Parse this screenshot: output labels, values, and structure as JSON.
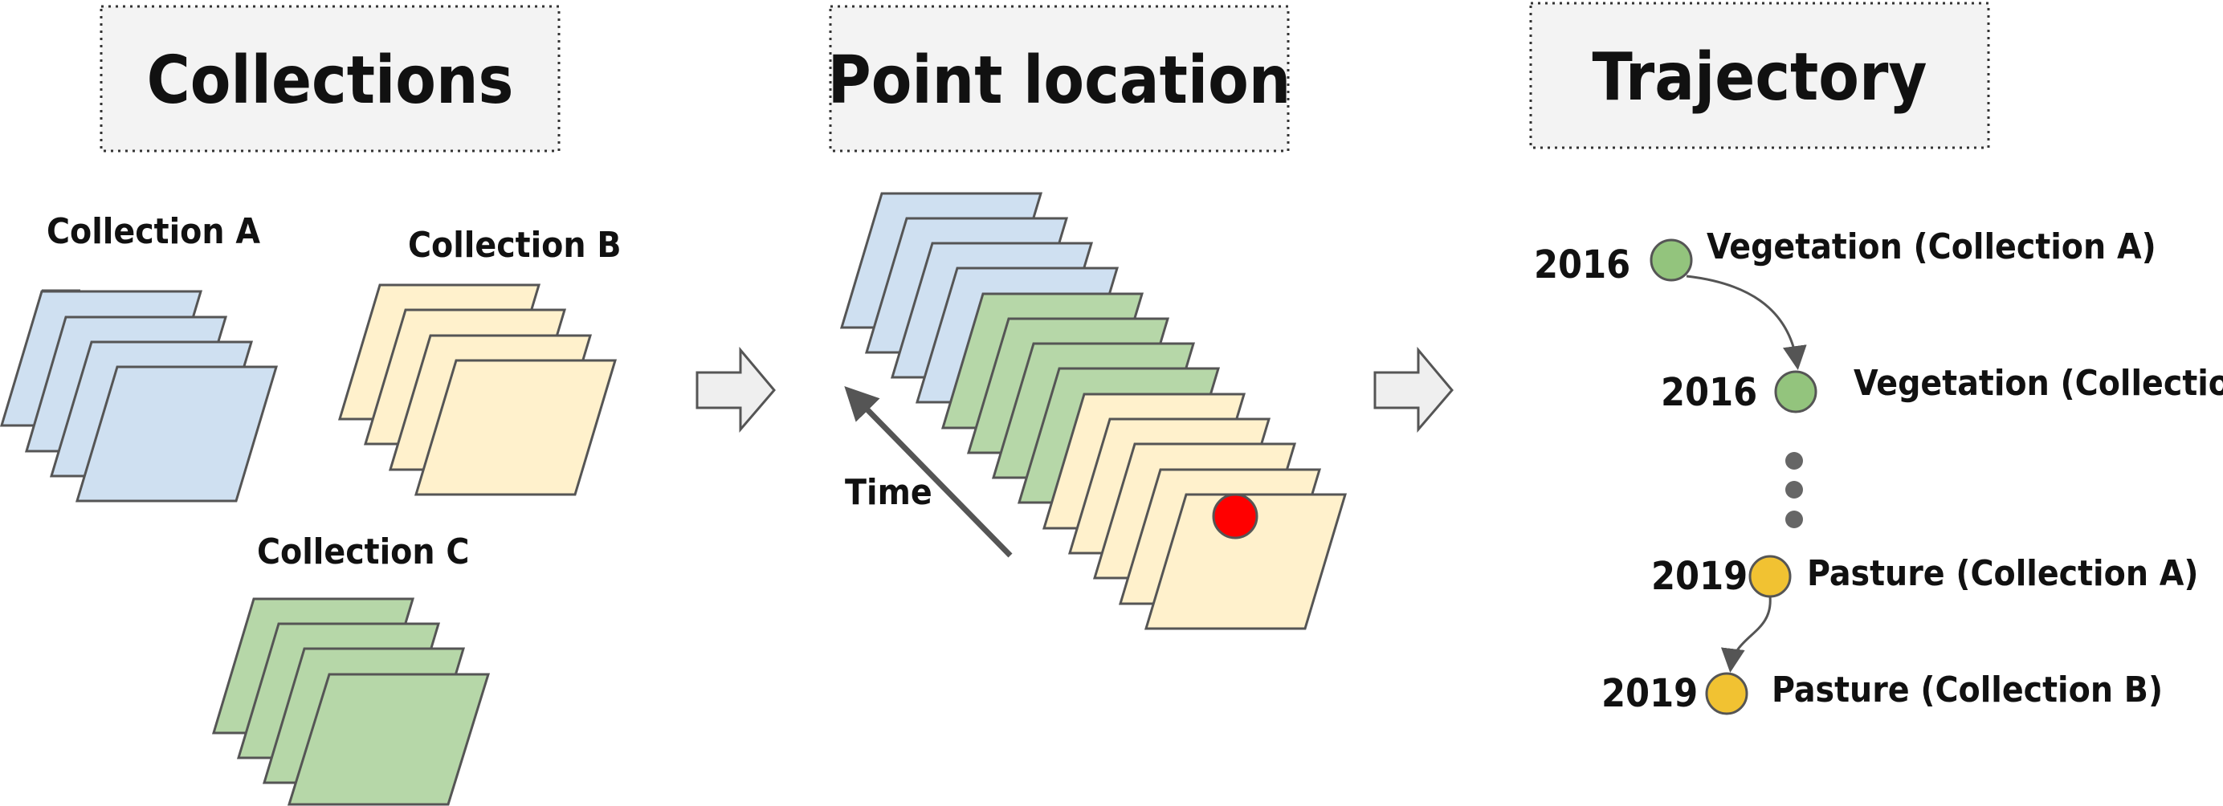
{
  "titles": {
    "collections": "Collections",
    "point_location": "Point location",
    "trajectory": "Trajectory"
  },
  "collections": {
    "a_label": "Collection A",
    "b_label": "Collection B",
    "c_label": "Collection C"
  },
  "point_location": {
    "time_label": "Time"
  },
  "trajectory": {
    "items": [
      {
        "year": "2016",
        "label": "Vegetation (Collection A)"
      },
      {
        "year": "2016",
        "label": "Vegetation (Collection B)"
      },
      {
        "year": "2019",
        "label": "Pasture  (Collection A)"
      },
      {
        "year": "2019",
        "label": "Pasture  (Collection B)"
      }
    ]
  },
  "colors": {
    "blue": "#cfe0f1",
    "yellow": "#fff1cc",
    "green": "#b6d7a8",
    "node_green": "#93c47d",
    "node_yellow": "#f1c232",
    "point_red": "#ff0000",
    "box_fill": "#f3f3f3",
    "stroke": "#555555",
    "arrow_fill": "#efefef"
  }
}
